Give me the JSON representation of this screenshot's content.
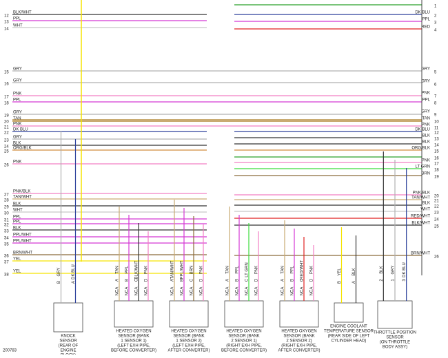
{
  "left_rows": [
    {
      "num": "12",
      "label": "BLK/WHT"
    },
    {
      "num": "13",
      "label": "PPL"
    },
    {
      "num": "14",
      "label": "WHT"
    },
    {
      "num": "15",
      "label": "GRY"
    },
    {
      "num": "16",
      "label": "GRY"
    },
    {
      "num": "17",
      "label": "PNK"
    },
    {
      "num": "18",
      "label": "PPL"
    },
    {
      "num": "19",
      "label": "GRY"
    },
    {
      "num": "20",
      "label": "TAN"
    },
    {
      "num": "21",
      "label": "PNK"
    },
    {
      "num": "22",
      "label": "DK BLU"
    },
    {
      "num": "23",
      "label": "GRY"
    },
    {
      "num": "24",
      "label": "BLK"
    },
    {
      "num": "25",
      "label": "ORG/BLK"
    },
    {
      "num": "26",
      "label": "PNK"
    },
    {
      "num": "27",
      "label": "PNK/BLK"
    },
    {
      "num": "28",
      "label": "TAN/WHT"
    },
    {
      "num": "29",
      "label": "BLK"
    },
    {
      "num": "30",
      "label": "WHT"
    },
    {
      "num": "31",
      "label": "PPL"
    },
    {
      "num": "32",
      "label": "PPL"
    },
    {
      "num": "33",
      "label": "BLK"
    },
    {
      "num": "34",
      "label": "PPL/WHT"
    },
    {
      "num": "35",
      "label": "PPL/WHT"
    },
    {
      "num": "36",
      "label": "BRN/WHT"
    },
    {
      "num": "37",
      "label": "YEL"
    },
    {
      "num": "38",
      "label": "YEL"
    }
  ],
  "right_rows": [
    {
      "num": "1"
    },
    {
      "num": "2",
      "label": "DK BLU"
    },
    {
      "num": "3",
      "label": "PPL"
    },
    {
      "num": "4",
      "label": "RED"
    },
    {
      "num": "5",
      "label": "GRY"
    },
    {
      "num": "6",
      "label": "GRY"
    },
    {
      "num": "7",
      "label": "PNK"
    },
    {
      "num": "8",
      "label": "PPL"
    },
    {
      "num": "9",
      "label": "GRY"
    },
    {
      "num": "10",
      "label": "TAN"
    },
    {
      "num": "11",
      "label": "PNK"
    },
    {
      "num": "12",
      "label": "DK BLU"
    },
    {
      "num": "13",
      "label": "BLK"
    },
    {
      "num": "14",
      "label": "BLK"
    },
    {
      "num": "15",
      "label": "ORG/BLK"
    },
    {
      "num": "16"
    },
    {
      "num": "17",
      "label": "PNK"
    },
    {
      "num": "18",
      "label": "LT GRN"
    },
    {
      "num": "19",
      "label": "BRN"
    },
    {
      "num": "20",
      "label": "PNK/BLK"
    },
    {
      "num": "21",
      "label": "TAN/WHT"
    },
    {
      "num": "22",
      "label": "BLK"
    },
    {
      "num": "23",
      "label": "WHT"
    },
    {
      "num": "24",
      "label": "RED/WHT"
    },
    {
      "num": "25",
      "label": "BLK/WHT"
    },
    {
      "num": "26",
      "label": "BRN/WHT"
    }
  ],
  "components": [
    {
      "name": [
        "KNOCK",
        "SENSOR",
        "(REAR OF",
        "ENGINE",
        "BLOCK)"
      ],
      "pins": [
        {
          "id": "B",
          "wire": "GRY"
        },
        {
          "id": "A",
          "wire": "DK BLU"
        }
      ]
    },
    {
      "name": [
        "HEATED OXYGEN",
        "SENSOR (BANK",
        "1 SENSOR 1)",
        "(LEFT EXH PIPE,",
        "BEFORE CONVERTER)"
      ],
      "pins": [
        {
          "id": "A",
          "wire": "TAN",
          "tag": "NCA"
        },
        {
          "id": "B",
          "wire": "PPL",
          "tag": "NCA"
        },
        {
          "id": "C",
          "wire": "BLK/WHT",
          "tag": "NCA"
        },
        {
          "id": "D",
          "wire": "PNK",
          "tag": "NCA"
        }
      ]
    },
    {
      "name": [
        "HEATED OXYGEN",
        "SENSOR (BANK",
        "1 SENSOR 2)",
        "(LEFT EXH PIPE,",
        "AFTER CONVERTER)"
      ],
      "pins": [
        {
          "id": "A",
          "wire": "TAN/WHT",
          "tag": "NCA"
        },
        {
          "id": "B",
          "wire": "PPL/WHT",
          "tag": "NCA"
        },
        {
          "id": "C",
          "wire": "BRN",
          "tag": "NCA"
        },
        {
          "id": "D",
          "wire": "PNK",
          "tag": "NCA"
        }
      ]
    },
    {
      "name": [
        "HEATED OXYGEN",
        "SENSOR (BANK",
        "2 SENSOR 1)",
        "(RIGHT EXH PIPE,",
        "BEFORE CONVERTER)"
      ],
      "pins": [
        {
          "id": "A",
          "wire": "TAN",
          "tag": "NCA"
        },
        {
          "id": "B",
          "wire": "PPL",
          "tag": "NCA"
        },
        {
          "id": "C",
          "wire": "LT GRN",
          "tag": "NCA"
        },
        {
          "id": "D",
          "wire": "PNK",
          "tag": "NCA"
        }
      ]
    },
    {
      "name": [
        "HEATED OXYGEN",
        "SENSOR (BANK",
        "2 SENSOR 2)",
        "(RIGHT EXH PIPE,",
        "AFTER CONVERTER)"
      ],
      "pins": [
        {
          "id": "A",
          "wire": "TAN",
          "tag": "NCA"
        },
        {
          "id": "B",
          "wire": "PPL",
          "tag": "NCA"
        },
        {
          "id": "C",
          "wire": "RED/WHT",
          "tag": "NCA"
        },
        {
          "id": "D",
          "wire": "PNK",
          "tag": "NCA"
        }
      ]
    },
    {
      "name": [
        "ENGINE COOLANT",
        "TEMPERATURE SENSOR",
        "(REAR SIDE OF LEFT",
        "CYLINDER HEAD)"
      ],
      "pins": [
        {
          "id": "B",
          "wire": "YEL"
        },
        {
          "id": "A",
          "wire": "BLK"
        }
      ]
    },
    {
      "name": [
        "THROTTLE POSITION",
        "SENSOR",
        "(ON THROTTLE",
        "BODY ASSY)"
      ],
      "pins": [
        {
          "id": "2",
          "wire": "BLK"
        },
        {
          "id": "1",
          "wire": "GRY"
        },
        {
          "id": "3",
          "wire": "DK BLU"
        }
      ]
    }
  ],
  "footer": "200783"
}
